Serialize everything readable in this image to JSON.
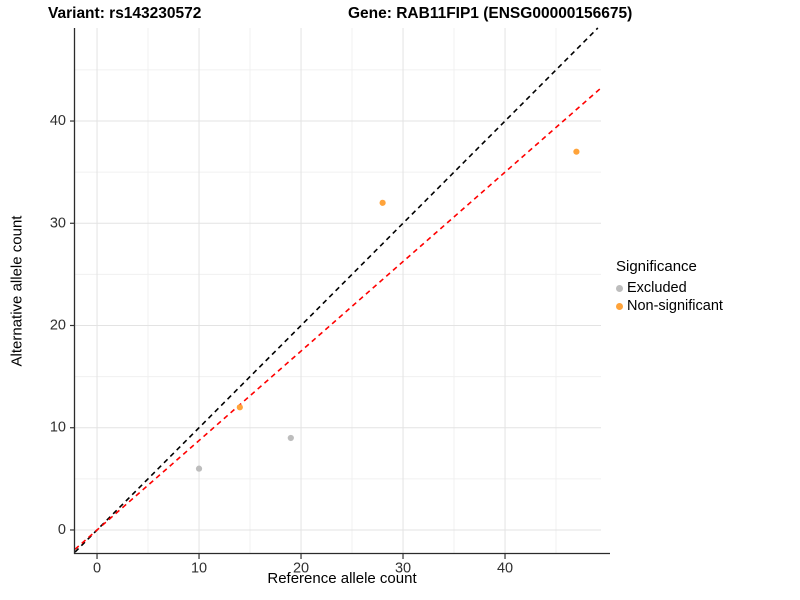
{
  "titles": {
    "variant": "Variant: rs143230572",
    "gene": "Gene: RAB11FIP1 (ENSG00000156675)"
  },
  "chart_data": {
    "type": "scatter",
    "xlabel": "Reference allele count",
    "ylabel": "Alternative allele count",
    "xlim": [
      -2.16,
      49.41
    ],
    "ylim": [
      -2.35,
      49.1
    ],
    "xticks": [
      0,
      10,
      20,
      30,
      40
    ],
    "yticks": [
      0,
      10,
      20,
      30,
      40
    ],
    "minor_xticks": [
      5,
      15,
      25,
      35,
      45
    ],
    "minor_yticks": [
      5,
      15,
      25,
      35,
      45
    ],
    "grid": true,
    "legend_position": "right",
    "series": [
      {
        "name": "Excluded",
        "color": "#BDBDBD",
        "points": [
          [
            10,
            6
          ],
          [
            19,
            9
          ]
        ]
      },
      {
        "name": "Non-significant",
        "color": "#FFA33A",
        "points": [
          [
            14,
            12
          ],
          [
            28,
            32
          ],
          [
            47,
            37
          ]
        ]
      }
    ],
    "lines": [
      {
        "name": "identity-line",
        "color": "#000000",
        "slope": 1.0,
        "intercept": 0,
        "dash": "5,4"
      },
      {
        "name": "fit-line",
        "color": "#FF0000",
        "slope": 0.875,
        "intercept": 0,
        "dash": "5,4"
      }
    ],
    "legend": {
      "title": "Significance",
      "entries": [
        {
          "label": "Excluded",
          "color": "#BDBDBD"
        },
        {
          "label": "Non-significant",
          "color": "#FFA33A"
        }
      ]
    },
    "style": {
      "major_grid_color": "#E3E3E3",
      "minor_grid_color": "#F0F0F0",
      "axis_line_color": "#2b2b2b",
      "tick_color": "#333333",
      "tick_label_color": "#303030",
      "point_radius": 3.1
    }
  }
}
